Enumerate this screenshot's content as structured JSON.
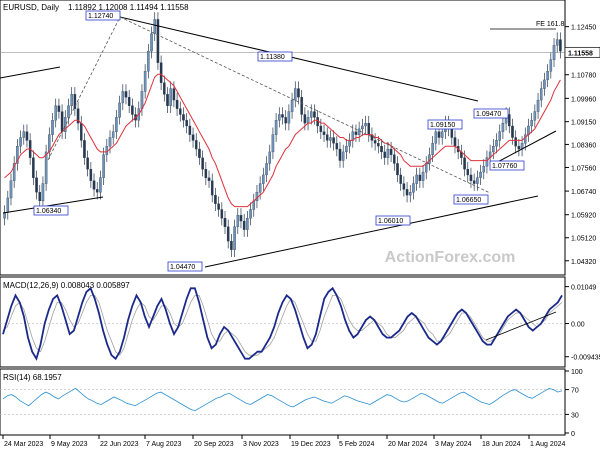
{
  "chart_data": {
    "type": "candlestick",
    "symbol": "EURUSD, Daily",
    "ohlc_header": "1.11892 1.12008 1.11494 1.11558",
    "watermark": "ActionForex.com",
    "x_ticks": [
      "24 Mar 2023",
      "9 May 2023",
      "22 Jun 2023",
      "7 Aug 2023",
      "20 Sep 2023",
      "3 Nov 2023",
      "19 Dec 2023",
      "5 Feb 2024",
      "20 Mar 2024",
      "3 May 2024",
      "18 Jun 2024",
      "1 Aug 2024"
    ],
    "price_panel": {
      "y_ticks": [
        "1.12450",
        "1.11558",
        "1.10780",
        "1.09960",
        "1.09150",
        "1.08360",
        "1.07560",
        "1.06740",
        "1.05920",
        "1.05120",
        "1.04320"
      ],
      "last_price": "1.11558",
      "ylim": [
        1.04,
        1.1275
      ],
      "series_close": [
        1.06,
        1.065,
        1.071,
        1.077,
        1.083,
        1.086,
        1.088,
        1.085,
        1.079,
        1.072,
        1.067,
        1.064,
        1.07,
        1.081,
        1.087,
        1.092,
        1.097,
        1.095,
        1.088,
        1.093,
        1.097,
        1.101,
        1.096,
        1.091,
        1.085,
        1.079,
        1.075,
        1.071,
        1.068,
        1.067,
        1.072,
        1.08,
        1.083,
        1.086,
        1.088,
        1.093,
        1.098,
        1.102,
        1.1,
        1.097,
        1.094,
        1.092,
        1.096,
        1.102,
        1.109,
        1.116,
        1.122,
        1.127,
        1.112,
        1.105,
        1.101,
        1.097,
        1.103,
        1.099,
        1.096,
        1.094,
        1.092,
        1.09,
        1.087,
        1.085,
        1.082,
        1.079,
        1.075,
        1.072,
        1.071,
        1.066,
        1.063,
        1.061,
        1.058,
        1.055,
        1.05,
        1.047,
        1.055,
        1.059,
        1.057,
        1.054,
        1.058,
        1.061,
        1.064,
        1.067,
        1.07,
        1.073,
        1.077,
        1.081,
        1.087,
        1.092,
        1.094,
        1.093,
        1.091,
        1.095,
        1.099,
        1.103,
        1.1,
        1.094,
        1.091,
        1.093,
        1.095,
        1.093,
        1.09,
        1.088,
        1.087,
        1.085,
        1.086,
        1.084,
        1.082,
        1.078,
        1.081,
        1.083,
        1.085,
        1.088,
        1.087,
        1.089,
        1.09,
        1.091,
        1.087,
        1.085,
        1.084,
        1.083,
        1.081,
        1.079,
        1.082,
        1.08,
        1.077,
        1.073,
        1.07,
        1.068,
        1.066,
        1.067,
        1.07,
        1.073,
        1.071,
        1.074,
        1.077,
        1.08,
        1.084,
        1.088,
        1.086,
        1.088,
        1.091,
        1.089,
        1.086,
        1.083,
        1.081,
        1.079,
        1.075,
        1.073,
        1.071,
        1.07,
        1.072,
        1.074,
        1.076,
        1.079,
        1.081,
        1.083,
        1.085,
        1.088,
        1.091,
        1.094,
        1.09,
        1.086,
        1.083,
        1.082,
        1.084,
        1.087,
        1.09,
        1.092,
        1.095,
        1.099,
        1.103,
        1.106,
        1.109,
        1.113,
        1.118,
        1.12,
        1.116
      ],
      "ma": [
        1.072,
        1.073,
        1.074,
        1.076,
        1.078,
        1.08,
        1.081,
        1.082,
        1.082,
        1.081,
        1.08,
        1.079,
        1.079,
        1.08,
        1.081,
        1.083,
        1.085,
        1.087,
        1.088,
        1.089,
        1.09,
        1.091,
        1.092,
        1.092,
        1.091,
        1.09,
        1.088,
        1.086,
        1.084,
        1.082,
        1.081,
        1.081,
        1.081,
        1.082,
        1.083,
        1.084,
        1.086,
        1.088,
        1.09,
        1.091,
        1.092,
        1.093,
        1.094,
        1.096,
        1.098,
        1.101,
        1.104,
        1.107,
        1.108,
        1.108,
        1.107,
        1.106,
        1.105,
        1.104,
        1.102,
        1.1,
        1.098,
        1.096,
        1.094,
        1.092,
        1.09,
        1.088,
        1.086,
        1.084,
        1.082,
        1.079,
        1.077,
        1.074,
        1.071,
        1.068,
        1.065,
        1.063,
        1.062,
        1.062,
        1.062,
        1.062,
        1.062,
        1.063,
        1.064,
        1.065,
        1.066,
        1.067,
        1.069,
        1.071,
        1.073,
        1.076,
        1.078,
        1.08,
        1.082,
        1.083,
        1.085,
        1.087,
        1.088,
        1.089,
        1.09,
        1.091,
        1.091,
        1.092,
        1.092,
        1.091,
        1.091,
        1.09,
        1.089,
        1.088,
        1.087,
        1.086,
        1.086,
        1.085,
        1.085,
        1.085,
        1.086,
        1.086,
        1.087,
        1.087,
        1.087,
        1.087,
        1.086,
        1.086,
        1.085,
        1.084,
        1.084,
        1.083,
        1.082,
        1.081,
        1.08,
        1.078,
        1.077,
        1.076,
        1.076,
        1.076,
        1.076,
        1.076,
        1.077,
        1.078,
        1.079,
        1.08,
        1.081,
        1.082,
        1.083,
        1.083,
        1.083,
        1.083,
        1.082,
        1.081,
        1.08,
        1.079,
        1.078,
        1.078,
        1.078,
        1.078,
        1.078,
        1.078,
        1.079,
        1.08,
        1.081,
        1.082,
        1.083,
        1.084,
        1.085,
        1.085,
        1.085,
        1.085,
        1.085,
        1.086,
        1.087,
        1.088,
        1.089,
        1.091,
        1.093,
        1.095,
        1.097,
        1.099,
        1.102,
        1.104,
        1.106
      ],
      "annotations": [
        {
          "label": "1.12740",
          "value": 1.1274
        },
        {
          "label": "1.11380",
          "value": 1.1138
        },
        {
          "label": "1.06340",
          "value": 1.0634
        },
        {
          "label": "1.04470",
          "value": 1.0447
        },
        {
          "label": "1.09150",
          "value": 1.0915
        },
        {
          "label": "1.09470",
          "value": 1.0947
        },
        {
          "label": "1.07760",
          "value": 1.0776
        },
        {
          "label": "1.06650",
          "value": 1.0665
        },
        {
          "label": "1.06010",
          "value": 1.0601
        }
      ],
      "fe_label": "FE 161.8"
    },
    "macd_panel": {
      "title": "MACD(12,26,9) 0.008043 0.005897",
      "y_ticks": [
        "0.01049",
        "0.00",
        "-0.009435"
      ],
      "ylim": [
        -0.0115,
        0.0118
      ],
      "macd": [
        -0.003,
        0.001,
        0.005,
        0.008,
        0.006,
        0.002,
        -0.004,
        -0.008,
        -0.01,
        -0.006,
        0.0,
        0.004,
        0.007,
        0.008,
        0.005,
        0.001,
        -0.003,
        -0.002,
        0.002,
        0.006,
        0.009,
        0.01,
        0.007,
        0.003,
        -0.002,
        -0.006,
        -0.009,
        -0.01,
        -0.008,
        -0.004,
        0.001,
        0.005,
        0.008,
        0.006,
        0.002,
        -0.001,
        0.002,
        0.005,
        0.007,
        0.004,
        0.0,
        -0.003,
        -0.001,
        0.003,
        0.007,
        0.01,
        0.01,
        0.006,
        0.001,
        -0.004,
        -0.007,
        -0.006,
        -0.003,
        -0.001,
        -0.002,
        -0.004,
        -0.006,
        -0.008,
        -0.01,
        -0.01,
        -0.009,
        -0.008,
        -0.008,
        -0.006,
        -0.004,
        -0.001,
        0.003,
        0.006,
        0.008,
        0.007,
        0.004,
        0.0,
        -0.004,
        -0.007,
        -0.006,
        -0.003,
        0.002,
        0.007,
        0.009,
        0.01,
        0.008,
        0.005,
        0.001,
        -0.002,
        -0.004,
        -0.003,
        -0.001,
        0.001,
        0.002,
        0.001,
        -0.001,
        -0.003,
        -0.004,
        -0.004,
        -0.003,
        -0.002,
        0.0,
        0.002,
        0.003,
        0.002,
        0.0,
        -0.002,
        -0.004,
        -0.005,
        -0.006,
        -0.005,
        -0.003,
        -0.001,
        0.001,
        0.003,
        0.004,
        0.003,
        0.001,
        -0.001,
        -0.003,
        -0.005,
        -0.006,
        -0.006,
        -0.004,
        -0.002,
        0.0,
        0.002,
        0.003,
        0.004,
        0.003,
        0.001,
        -0.001,
        -0.002,
        -0.001,
        0.0,
        0.002,
        0.004,
        0.005,
        0.006,
        0.008
      ],
      "signal": [
        -0.002,
        -0.001,
        0.002,
        0.005,
        0.006,
        0.004,
        0.0,
        -0.004,
        -0.007,
        -0.008,
        -0.005,
        -0.001,
        0.003,
        0.006,
        0.006,
        0.004,
        0.001,
        -0.001,
        0.0,
        0.003,
        0.006,
        0.008,
        0.008,
        0.006,
        0.002,
        -0.002,
        -0.005,
        -0.008,
        -0.009,
        -0.007,
        -0.003,
        0.001,
        0.004,
        0.006,
        0.005,
        0.002,
        0.001,
        0.003,
        0.005,
        0.005,
        0.003,
        0.0,
        -0.001,
        0.0,
        0.003,
        0.006,
        0.008,
        0.008,
        0.005,
        0.001,
        -0.003,
        -0.005,
        -0.005,
        -0.003,
        -0.002,
        -0.003,
        -0.004,
        -0.006,
        -0.008,
        -0.009,
        -0.009,
        -0.009,
        -0.008,
        -0.007,
        -0.006,
        -0.004,
        -0.001,
        0.002,
        0.005,
        0.007,
        0.006,
        0.003,
        0.0,
        -0.003,
        -0.005,
        -0.005,
        -0.002,
        0.002,
        0.005,
        0.008,
        0.008,
        0.007,
        0.004,
        0.001,
        -0.001,
        -0.002,
        -0.002,
        -0.001,
        0.0,
        0.001,
        0.0,
        -0.001,
        -0.003,
        -0.004,
        -0.004,
        -0.003,
        -0.002,
        0.0,
        0.001,
        0.002,
        0.001,
        0.0,
        -0.002,
        -0.003,
        -0.005,
        -0.005,
        -0.004,
        -0.003,
        -0.001,
        0.001,
        0.003,
        0.003,
        0.002,
        0.0,
        -0.002,
        -0.004,
        -0.005,
        -0.005,
        -0.004,
        -0.003,
        -0.001,
        0.001,
        0.002,
        0.003,
        0.003,
        0.002,
        0.001,
        0.0,
        -0.001,
        0.0,
        0.001,
        0.003,
        0.004,
        0.005,
        0.006
      ]
    },
    "rsi_panel": {
      "title": "RSI(14) 68.1957",
      "y_ticks": [
        "100",
        "70",
        "30",
        "0"
      ],
      "ylim": [
        0,
        100
      ],
      "rsi": [
        55,
        60,
        62,
        58,
        52,
        48,
        44,
        50,
        56,
        62,
        66,
        63,
        58,
        55,
        60,
        64,
        68,
        72,
        66,
        60,
        55,
        52,
        48,
        46,
        50,
        54,
        58,
        55,
        52,
        48,
        46,
        44,
        48,
        52,
        56,
        60,
        64,
        66,
        62,
        58,
        54,
        50,
        46,
        42,
        38,
        36,
        40,
        44,
        48,
        52,
        56,
        58,
        62,
        64,
        60,
        56,
        52,
        48,
        46,
        50,
        54,
        58,
        62,
        60,
        56,
        52,
        48,
        44,
        42,
        46,
        50,
        54,
        56,
        58,
        55,
        52,
        50,
        48,
        52,
        56,
        60,
        58,
        55,
        52,
        50,
        48,
        46,
        50,
        54,
        58,
        62,
        60,
        56,
        52,
        50,
        52,
        56,
        60,
        64,
        62,
        58,
        54,
        50,
        48,
        52,
        56,
        60,
        64,
        66,
        62,
        58,
        54,
        50,
        48,
        46,
        50,
        55,
        60,
        64,
        68,
        70,
        66,
        62,
        58,
        56,
        60,
        64,
        68,
        72,
        70,
        66,
        68
      ]
    }
  }
}
